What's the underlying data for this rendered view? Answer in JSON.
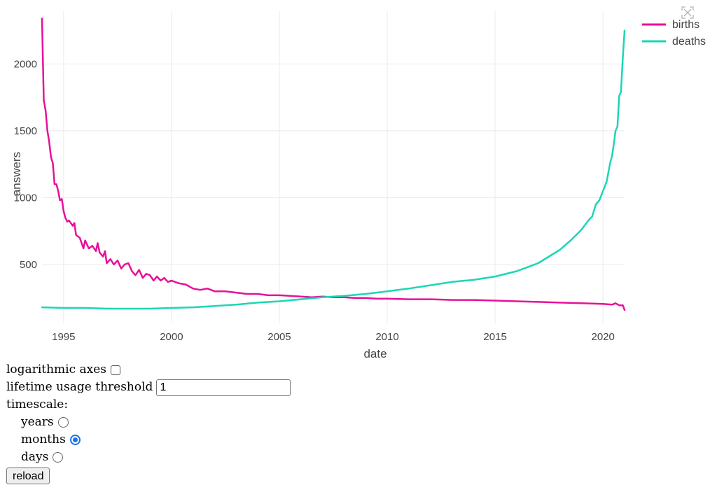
{
  "chart_data": {
    "type": "line",
    "xlabel": "date",
    "ylabel": "answers",
    "xlim": [
      1994.0,
      2021.0
    ],
    "ylim": [
      60,
      2400
    ],
    "xticks": [
      1995,
      2000,
      2005,
      2010,
      2015,
      2020
    ],
    "yticks": [
      500,
      1000,
      1500,
      2000
    ],
    "grid": true,
    "legend_position": "top-right",
    "series": [
      {
        "name": "births",
        "color": "#e6119a",
        "points": [
          [
            1994.0,
            2340
          ],
          [
            1994.08,
            1730
          ],
          [
            1994.17,
            1650
          ],
          [
            1994.25,
            1500
          ],
          [
            1994.33,
            1420
          ],
          [
            1994.42,
            1300
          ],
          [
            1994.5,
            1260
          ],
          [
            1994.58,
            1100
          ],
          [
            1994.67,
            1100
          ],
          [
            1994.75,
            1050
          ],
          [
            1994.83,
            980
          ],
          [
            1994.92,
            990
          ],
          [
            1995.0,
            900
          ],
          [
            1995.08,
            850
          ],
          [
            1995.17,
            820
          ],
          [
            1995.25,
            830
          ],
          [
            1995.42,
            790
          ],
          [
            1995.5,
            810
          ],
          [
            1995.58,
            720
          ],
          [
            1995.75,
            700
          ],
          [
            1995.92,
            620
          ],
          [
            1996.0,
            680
          ],
          [
            1996.17,
            620
          ],
          [
            1996.33,
            640
          ],
          [
            1996.5,
            600
          ],
          [
            1996.58,
            660
          ],
          [
            1996.67,
            590
          ],
          [
            1996.83,
            560
          ],
          [
            1996.92,
            600
          ],
          [
            1997.0,
            510
          ],
          [
            1997.17,
            540
          ],
          [
            1997.33,
            500
          ],
          [
            1997.5,
            530
          ],
          [
            1997.67,
            470
          ],
          [
            1997.83,
            500
          ],
          [
            1998.0,
            510
          ],
          [
            1998.17,
            450
          ],
          [
            1998.33,
            420
          ],
          [
            1998.5,
            460
          ],
          [
            1998.67,
            400
          ],
          [
            1998.83,
            430
          ],
          [
            1999.0,
            420
          ],
          [
            1999.17,
            380
          ],
          [
            1999.33,
            410
          ],
          [
            1999.5,
            380
          ],
          [
            1999.67,
            400
          ],
          [
            1999.83,
            370
          ],
          [
            2000.0,
            380
          ],
          [
            2000.33,
            360
          ],
          [
            2000.67,
            350
          ],
          [
            2001.0,
            320
          ],
          [
            2001.33,
            310
          ],
          [
            2001.67,
            320
          ],
          [
            2002.0,
            300
          ],
          [
            2002.5,
            300
          ],
          [
            2003.0,
            290
          ],
          [
            2003.5,
            280
          ],
          [
            2004.0,
            280
          ],
          [
            2004.5,
            270
          ],
          [
            2005.0,
            270
          ],
          [
            2005.5,
            265
          ],
          [
            2006.0,
            260
          ],
          [
            2006.5,
            255
          ],
          [
            2007.0,
            260
          ],
          [
            2007.5,
            255
          ],
          [
            2008.0,
            255
          ],
          [
            2008.5,
            250
          ],
          [
            2009.0,
            250
          ],
          [
            2009.5,
            245
          ],
          [
            2010.0,
            245
          ],
          [
            2011.0,
            240
          ],
          [
            2012.0,
            240
          ],
          [
            2013.0,
            235
          ],
          [
            2014.0,
            235
          ],
          [
            2015.0,
            230
          ],
          [
            2016.0,
            225
          ],
          [
            2017.0,
            220
          ],
          [
            2018.0,
            215
          ],
          [
            2019.0,
            210
          ],
          [
            2020.0,
            205
          ],
          [
            2020.42,
            200
          ],
          [
            2020.58,
            210
          ],
          [
            2020.75,
            195
          ],
          [
            2020.92,
            195
          ],
          [
            2021.0,
            160
          ]
        ]
      },
      {
        "name": "deaths",
        "color": "#1cd6b4",
        "points": [
          [
            1994.0,
            180
          ],
          [
            1995.0,
            175
          ],
          [
            1996.0,
            175
          ],
          [
            1997.0,
            170
          ],
          [
            1998.0,
            170
          ],
          [
            1999.0,
            170
          ],
          [
            2000.0,
            175
          ],
          [
            2001.0,
            180
          ],
          [
            2002.0,
            190
          ],
          [
            2003.0,
            200
          ],
          [
            2004.0,
            215
          ],
          [
            2005.0,
            225
          ],
          [
            2006.0,
            240
          ],
          [
            2007.0,
            255
          ],
          [
            2008.0,
            265
          ],
          [
            2009.0,
            280
          ],
          [
            2010.0,
            300
          ],
          [
            2011.0,
            320
          ],
          [
            2012.0,
            345
          ],
          [
            2013.0,
            370
          ],
          [
            2014.0,
            385
          ],
          [
            2015.0,
            410
          ],
          [
            2016.0,
            450
          ],
          [
            2016.5,
            480
          ],
          [
            2017.0,
            510
          ],
          [
            2017.5,
            560
          ],
          [
            2018.0,
            610
          ],
          [
            2018.5,
            680
          ],
          [
            2019.0,
            760
          ],
          [
            2019.33,
            830
          ],
          [
            2019.5,
            860
          ],
          [
            2019.67,
            950
          ],
          [
            2019.83,
            980
          ],
          [
            2020.0,
            1050
          ],
          [
            2020.17,
            1120
          ],
          [
            2020.33,
            1260
          ],
          [
            2020.42,
            1310
          ],
          [
            2020.5,
            1400
          ],
          [
            2020.58,
            1500
          ],
          [
            2020.67,
            1530
          ],
          [
            2020.75,
            1760
          ],
          [
            2020.83,
            1790
          ],
          [
            2020.92,
            2050
          ],
          [
            2021.0,
            2250
          ]
        ]
      }
    ]
  },
  "controls": {
    "log_axes_label": "logarithmic axes",
    "log_axes_checked": false,
    "threshold_label": "lifetime usage threshold",
    "threshold_value": "1",
    "timescale_label": "timescale:",
    "timescale_options": [
      {
        "label": "years",
        "selected": false
      },
      {
        "label": "months",
        "selected": true
      },
      {
        "label": "days",
        "selected": false
      }
    ],
    "reload_label": "reload"
  }
}
